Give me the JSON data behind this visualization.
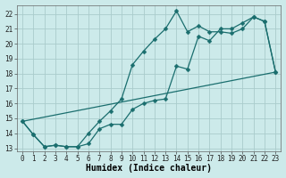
{
  "xlabel": "Humidex (Indice chaleur)",
  "bg_color": "#cceaea",
  "grid_color": "#aacccc",
  "line_color": "#1a6e6e",
  "xlim": [
    -0.5,
    23.5
  ],
  "ylim": [
    12.8,
    22.6
  ],
  "xticks": [
    0,
    1,
    2,
    3,
    4,
    5,
    6,
    7,
    8,
    9,
    10,
    11,
    12,
    13,
    14,
    15,
    16,
    17,
    18,
    19,
    20,
    21,
    22,
    23
  ],
  "yticks": [
    13,
    14,
    15,
    16,
    17,
    18,
    19,
    20,
    21,
    22
  ],
  "line1_x": [
    0,
    1,
    2,
    3,
    4,
    5,
    6,
    7,
    8,
    9,
    10,
    11,
    12,
    13,
    14,
    15,
    16,
    17,
    18,
    19,
    20,
    21,
    22,
    23
  ],
  "line1_y": [
    14.8,
    13.9,
    13.1,
    13.2,
    13.1,
    13.1,
    13.3,
    14.3,
    14.6,
    14.6,
    15.6,
    16.0,
    16.2,
    16.3,
    18.5,
    18.3,
    20.5,
    20.2,
    21.0,
    21.0,
    21.4,
    21.8,
    21.5,
    18.1
  ],
  "line2_x": [
    0,
    1,
    2,
    3,
    4,
    5,
    6,
    7,
    8,
    9,
    10,
    11,
    12,
    13,
    14,
    15,
    16,
    17,
    18,
    19,
    20,
    21,
    22,
    23
  ],
  "line2_y": [
    14.8,
    13.9,
    13.1,
    13.2,
    13.1,
    13.1,
    14.0,
    14.8,
    15.5,
    16.3,
    18.6,
    19.5,
    20.3,
    21.0,
    22.2,
    20.8,
    21.2,
    20.8,
    20.8,
    20.7,
    21.0,
    21.8,
    21.5,
    18.1
  ],
  "line3_x": [
    0,
    23
  ],
  "line3_y": [
    14.8,
    18.1
  ],
  "markersize": 2.5,
  "linewidth": 0.9,
  "xlabel_fontsize": 7,
  "tick_fontsize": 5.5
}
